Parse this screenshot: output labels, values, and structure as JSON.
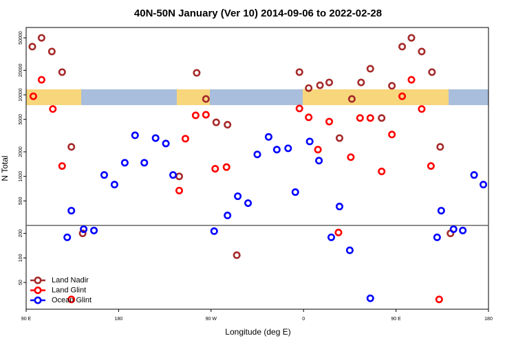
{
  "chart_data": {
    "type": "scatter",
    "title": "40N-50N January (Ver 10)   2014-09-06 to 2022-02-28",
    "xlabel": "Longitude (deg E)",
    "ylabel": "N Total",
    "xlim": [
      90,
      540
    ],
    "xticks": [
      {
        "value": 90,
        "label": "90 E"
      },
      180,
      {
        "value": 270,
        "label": "90 W"
      },
      {
        "value": 360,
        "label": "0"
      },
      {
        "value": 450,
        "label": "90 E"
      },
      {
        "value": 540,
        "label": "180"
      }
    ],
    "ylim": [
      23.5,
      67000
    ],
    "log_y": true,
    "yticks": [
      50,
      100,
      200,
      500,
      1000,
      2000,
      5000,
      10000,
      20000,
      50000
    ],
    "hline": 250,
    "legend": "lower left",
    "series": [
      {
        "name": "Land Nadir",
        "color": "#a52a2a",
        "x": [
          96,
          105,
          115,
          125,
          134,
          145,
          239,
          256,
          265,
          275,
          286,
          295,
          356,
          365,
          376,
          385,
          395,
          407,
          416,
          425,
          436,
          446,
          456,
          465,
          475,
          485,
          493,
          503
        ],
        "values": [
          39000,
          50000,
          34000,
          19000,
          2300,
          200,
          1000,
          18600,
          8900,
          4600,
          4300,
          108,
          19000,
          12100,
          13100,
          14200,
          2950,
          8900,
          14200,
          20900,
          5200,
          12900,
          39000,
          50000,
          34000,
          19000,
          2300,
          200
        ]
      },
      {
        "name": "Land Glint",
        "color": "#ff0000",
        "x": [
          97,
          105,
          116,
          125,
          134,
          245,
          239,
          255,
          265,
          274,
          285,
          356,
          365,
          374,
          385,
          394,
          406,
          415,
          425,
          436,
          446,
          456,
          465,
          475,
          484,
          492
        ],
        "values": [
          9600,
          15300,
          6700,
          1340,
          31,
          2900,
          670,
          5600,
          5700,
          1240,
          1300,
          6800,
          5300,
          2130,
          4700,
          205,
          1720,
          5200,
          5200,
          1150,
          3260,
          9600,
          15300,
          6700,
          1340,
          31
        ]
      },
      {
        "name": "Ocean Glint",
        "color": "#0000ff",
        "x": [
          130,
          134,
          146,
          156,
          166,
          176,
          186,
          196,
          205,
          216,
          226,
          233,
          273,
          286,
          296,
          306,
          315,
          326,
          334,
          345,
          352,
          366,
          375,
          387,
          395,
          405,
          425,
          490,
          494,
          506,
          515,
          526,
          535
        ],
        "values": [
          179,
          380,
          225,
          217,
          1040,
          793,
          1470,
          3190,
          1470,
          2950,
          2530,
          1040,
          213,
          332,
          571,
          470,
          1860,
          3050,
          2130,
          2210,
          641,
          2680,
          1560,
          179,
          427,
          124,
          32,
          179,
          380,
          225,
          217,
          1040,
          793
        ]
      }
    ]
  }
}
